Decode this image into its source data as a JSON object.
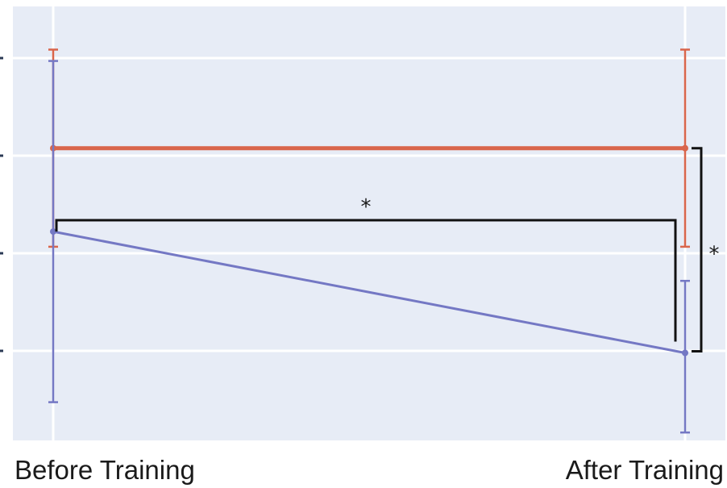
{
  "chart_data": {
    "type": "line",
    "categories": [
      "Before Training",
      "After Training"
    ],
    "ylim": [
      0,
      100
    ],
    "grid": true,
    "series": [
      {
        "color": "#d9654b",
        "values": [
          79,
          79
        ],
        "err_low": [
          53,
          53
        ],
        "err_high": [
          105,
          105
        ]
      },
      {
        "color": "#7478c4",
        "values": [
          57,
          25
        ],
        "err_low": [
          12,
          4
        ],
        "err_high": [
          102,
          44
        ]
      }
    ],
    "annotations": [
      {
        "label": "*",
        "type": "bracket-horizontal",
        "series": 1,
        "y": 60
      },
      {
        "label": "*",
        "type": "bracket-vertical",
        "category": 1,
        "from": 79,
        "to": 25
      }
    ]
  }
}
